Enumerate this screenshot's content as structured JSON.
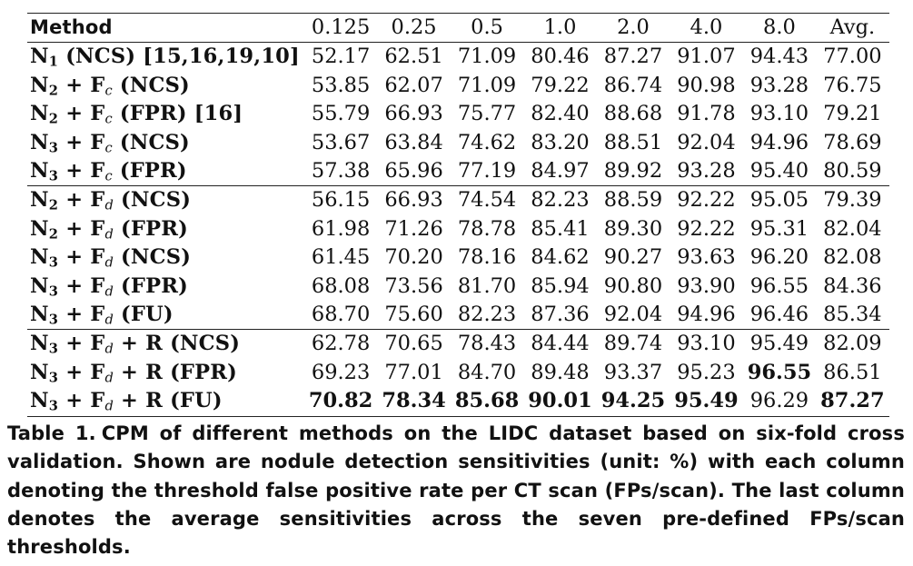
{
  "table": {
    "headers": [
      "Method",
      "0.125",
      "0.25",
      "0.5",
      "1.0",
      "2.0",
      "4.0",
      "8.0",
      "Avg."
    ],
    "rows": [
      {
        "method": {
          "pre": "N",
          "sub": "1",
          "post": " (NCS) [15,16,19,10]"
        },
        "values": [
          "52.17",
          "62.51",
          "71.09",
          "80.46",
          "87.27",
          "91.07",
          "94.43",
          "77.00"
        ],
        "best": []
      },
      {
        "method": {
          "pre": "N",
          "sub": "2",
          "mid": " + F",
          "sub2": "c",
          "post": " (NCS)"
        },
        "values": [
          "53.85",
          "62.07",
          "71.09",
          "79.22",
          "86.74",
          "90.98",
          "93.28",
          "76.75"
        ],
        "best": []
      },
      {
        "method": {
          "pre": "N",
          "sub": "2",
          "mid": " + F",
          "sub2": "c",
          "post": " (FPR) [16]"
        },
        "values": [
          "55.79",
          "66.93",
          "75.77",
          "82.40",
          "88.68",
          "91.78",
          "93.10",
          "79.21"
        ],
        "best": []
      },
      {
        "method": {
          "pre": "N",
          "sub": "3",
          "mid": " + F",
          "sub2": "c",
          "post": " (NCS)"
        },
        "values": [
          "53.67",
          "63.84",
          "74.62",
          "83.20",
          "88.51",
          "92.04",
          "94.96",
          "78.69"
        ],
        "best": []
      },
      {
        "method": {
          "pre": "N",
          "sub": "3",
          "mid": " + F",
          "sub2": "c",
          "post": " (FPR)"
        },
        "values": [
          "57.38",
          "65.96",
          "77.19",
          "84.97",
          "89.92",
          "93.28",
          "95.40",
          "80.59"
        ],
        "best": []
      },
      {
        "method": {
          "pre": "N",
          "sub": "2",
          "mid": " + F",
          "sub2": "d",
          "post": " (NCS)"
        },
        "values": [
          "56.15",
          "66.93",
          "74.54",
          "82.23",
          "88.59",
          "92.22",
          "95.05",
          "79.39"
        ],
        "best": []
      },
      {
        "method": {
          "pre": "N",
          "sub": "2",
          "mid": " + F",
          "sub2": "d",
          "post": " (FPR)"
        },
        "values": [
          "61.98",
          "71.26",
          "78.78",
          "85.41",
          "89.30",
          "92.22",
          "95.31",
          "82.04"
        ],
        "best": []
      },
      {
        "method": {
          "pre": "N",
          "sub": "3",
          "mid": " + F",
          "sub2": "d",
          "post": " (NCS)"
        },
        "values": [
          "61.45",
          "70.20",
          "78.16",
          "84.62",
          "90.27",
          "93.63",
          "96.20",
          "82.08"
        ],
        "best": []
      },
      {
        "method": {
          "pre": "N",
          "sub": "3",
          "mid": " + F",
          "sub2": "d",
          "post": " (FPR)"
        },
        "values": [
          "68.08",
          "73.56",
          "81.70",
          "85.94",
          "90.80",
          "93.90",
          "96.55",
          "84.36"
        ],
        "best": []
      },
      {
        "method": {
          "pre": "N",
          "sub": "3",
          "mid": " + F",
          "sub2": "d",
          "post": " (FU)"
        },
        "values": [
          "68.70",
          "75.60",
          "82.23",
          "87.36",
          "92.04",
          "94.96",
          "96.46",
          "85.34"
        ],
        "best": []
      },
      {
        "method": {
          "pre": "N",
          "sub": "3",
          "mid": " + F",
          "sub2": "d",
          "post": " + R (NCS)"
        },
        "values": [
          "62.78",
          "70.65",
          "78.43",
          "84.44",
          "89.74",
          "93.10",
          "95.49",
          "82.09"
        ],
        "best": []
      },
      {
        "method": {
          "pre": "N",
          "sub": "3",
          "mid": " + F",
          "sub2": "d",
          "post": " + R (FPR)"
        },
        "values": [
          "69.23",
          "77.01",
          "84.70",
          "89.48",
          "93.37",
          "95.23",
          "96.55",
          "86.51"
        ],
        "best": [
          6
        ]
      },
      {
        "method": {
          "pre": "N",
          "sub": "3",
          "mid": " + F",
          "sub2": "d",
          "post": " + R (FU)"
        },
        "values": [
          "70.82",
          "78.34",
          "85.68",
          "90.01",
          "94.25",
          "95.49",
          "96.29",
          "87.27"
        ],
        "best": [
          0,
          1,
          2,
          3,
          4,
          5,
          7
        ]
      }
    ],
    "group_starts": [
      5,
      10
    ]
  },
  "caption": {
    "label": "Table 1.",
    "text": "CPM of different methods on the LIDC dataset based on six-fold cross validation. Shown are nodule detection sensitivities (unit: %) with each column denoting the threshold false positive rate per CT scan (FPs/scan). The last column denotes the average sensitivities across the seven pre-defined FPs/scan thresholds."
  }
}
